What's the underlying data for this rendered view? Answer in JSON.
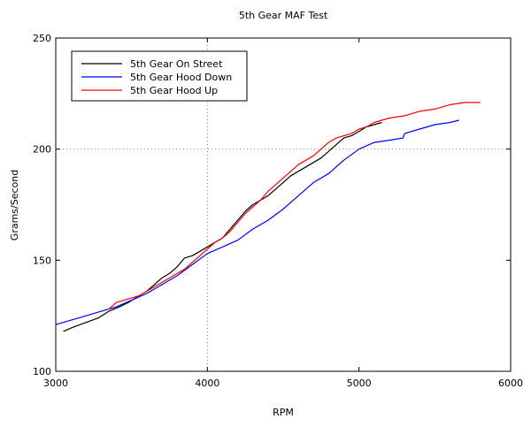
{
  "chart_data": {
    "type": "line",
    "title": "5th Gear MAF Test",
    "xlabel": "RPM",
    "ylabel": "Grams/Second",
    "xlim": [
      3000,
      6000
    ],
    "ylim": [
      100,
      250
    ],
    "x_ticks": [
      "3000",
      "4000",
      "5000",
      "6000"
    ],
    "y_ticks": [
      "100",
      "150",
      "200",
      "250"
    ],
    "grid": "dotted at x=4000 and y=200",
    "legend_position": "top-left",
    "series": [
      {
        "name": "5th Gear On Street",
        "color": "#000000",
        "points": [
          [
            3050,
            118
          ],
          [
            3120,
            120
          ],
          [
            3200,
            122
          ],
          [
            3280,
            124
          ],
          [
            3350,
            127
          ],
          [
            3420,
            129
          ],
          [
            3480,
            131
          ],
          [
            3550,
            134
          ],
          [
            3600,
            136
          ],
          [
            3650,
            139
          ],
          [
            3700,
            142
          ],
          [
            3750,
            144
          ],
          [
            3800,
            147
          ],
          [
            3850,
            151
          ],
          [
            3900,
            152
          ],
          [
            3950,
            154
          ],
          [
            4000,
            156
          ],
          [
            4050,
            158
          ],
          [
            4100,
            160
          ],
          [
            4150,
            164
          ],
          [
            4200,
            168
          ],
          [
            4250,
            172
          ],
          [
            4300,
            175
          ],
          [
            4350,
            177
          ],
          [
            4400,
            179
          ],
          [
            4450,
            182
          ],
          [
            4500,
            185
          ],
          [
            4550,
            188
          ],
          [
            4600,
            190
          ],
          [
            4650,
            192
          ],
          [
            4700,
            194
          ],
          [
            4750,
            196
          ],
          [
            4800,
            199
          ],
          [
            4850,
            202
          ],
          [
            4900,
            205
          ],
          [
            4950,
            206
          ],
          [
            5000,
            208
          ],
          [
            5050,
            210
          ],
          [
            5100,
            211
          ],
          [
            5150,
            212
          ]
        ]
      },
      {
        "name": "5th Gear Hood Down",
        "color": "#0000ff",
        "points": [
          [
            3000,
            121
          ],
          [
            3100,
            123
          ],
          [
            3200,
            125
          ],
          [
            3300,
            127
          ],
          [
            3400,
            129
          ],
          [
            3500,
            132
          ],
          [
            3600,
            135
          ],
          [
            3700,
            139
          ],
          [
            3800,
            143
          ],
          [
            3900,
            148
          ],
          [
            4000,
            153
          ],
          [
            4100,
            156
          ],
          [
            4200,
            159
          ],
          [
            4300,
            164
          ],
          [
            4400,
            168
          ],
          [
            4500,
            173
          ],
          [
            4600,
            179
          ],
          [
            4700,
            185
          ],
          [
            4800,
            189
          ],
          [
            4900,
            195
          ],
          [
            5000,
            200
          ],
          [
            5100,
            203
          ],
          [
            5200,
            204
          ],
          [
            5290,
            205
          ],
          [
            5300,
            207
          ],
          [
            5400,
            209
          ],
          [
            5500,
            211
          ],
          [
            5600,
            212
          ],
          [
            5660,
            213
          ]
        ]
      },
      {
        "name": "5th Gear Hood Up",
        "color": "#ff0000",
        "points": [
          [
            3350,
            128
          ],
          [
            3400,
            131
          ],
          [
            3450,
            132
          ],
          [
            3500,
            133
          ],
          [
            3550,
            134
          ],
          [
            3600,
            136
          ],
          [
            3650,
            138
          ],
          [
            3700,
            140
          ],
          [
            3750,
            142
          ],
          [
            3800,
            144
          ],
          [
            3850,
            146
          ],
          [
            3900,
            149
          ],
          [
            3950,
            152
          ],
          [
            4000,
            155
          ],
          [
            4050,
            158
          ],
          [
            4100,
            160
          ],
          [
            4150,
            163
          ],
          [
            4200,
            167
          ],
          [
            4250,
            171
          ],
          [
            4300,
            174
          ],
          [
            4350,
            177
          ],
          [
            4400,
            181
          ],
          [
            4450,
            184
          ],
          [
            4500,
            187
          ],
          [
            4550,
            190
          ],
          [
            4600,
            193
          ],
          [
            4650,
            195
          ],
          [
            4700,
            197
          ],
          [
            4750,
            200
          ],
          [
            4800,
            203
          ],
          [
            4850,
            205
          ],
          [
            4900,
            206
          ],
          [
            4950,
            207
          ],
          [
            5000,
            209
          ],
          [
            5050,
            210
          ],
          [
            5100,
            212
          ],
          [
            5150,
            213
          ],
          [
            5200,
            214
          ],
          [
            5300,
            215
          ],
          [
            5400,
            217
          ],
          [
            5500,
            218
          ],
          [
            5600,
            220
          ],
          [
            5700,
            221
          ],
          [
            5800,
            221
          ]
        ]
      }
    ]
  }
}
